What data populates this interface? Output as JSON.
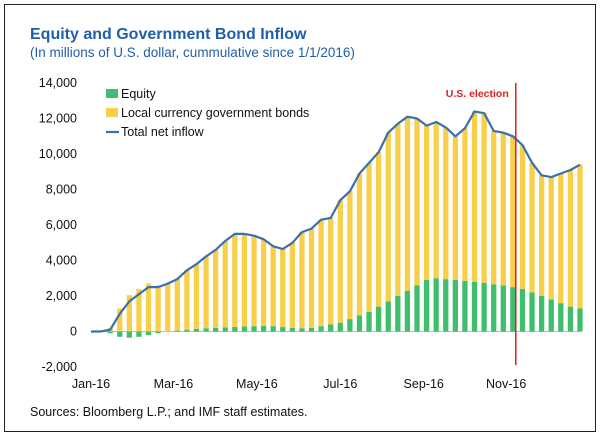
{
  "title": "Equity and Government Bond Inflow",
  "subtitle": "(In millions of U.S. dollar, cummulative since 1/1/2016)",
  "source": "Sources: Bloomberg L.P.; and IMF staff estimates.",
  "colors": {
    "equity": "#3fbf6b",
    "bonds": "#f7cf49",
    "total": "#3a6fb0",
    "election": "#e02020",
    "title": "#1f5fa8"
  },
  "chart_data": {
    "type": "bar",
    "stacked": true,
    "title": "Equity and Government Bond Inflow",
    "ylabel": "",
    "ylim": [
      -2000,
      14000
    ],
    "yticks": [
      -2000,
      0,
      2000,
      4000,
      6000,
      8000,
      10000,
      12000,
      14000
    ],
    "ytick_labels": [
      "-2,000",
      "0",
      "2,000",
      "4,000",
      "6,000",
      "8,000",
      "10,000",
      "12,000",
      "14,000"
    ],
    "x_range": [
      0,
      51
    ],
    "xticks": [
      0,
      8.6,
      17.3,
      26,
      34.7,
      43.3
    ],
    "xtick_labels": [
      "Jan-16",
      "Mar-16",
      "May-16",
      "Jul-16",
      "Sep-16",
      "Nov-16"
    ],
    "legend": {
      "position": "top-left",
      "entries": [
        "Equity",
        "Local currency government bonds",
        "Total net inflow"
      ]
    },
    "annotations": [
      {
        "text": "U.S. election",
        "x": 44.3
      }
    ],
    "series": [
      {
        "name": "Equity",
        "kind": "bar",
        "values": [
          0,
          0,
          -100,
          -300,
          -350,
          -300,
          -200,
          -100,
          0,
          50,
          100,
          150,
          180,
          200,
          230,
          260,
          280,
          300,
          320,
          300,
          250,
          200,
          180,
          200,
          300,
          400,
          500,
          700,
          900,
          1100,
          1400,
          1700,
          2000,
          2300,
          2600,
          2900,
          3000,
          2950,
          2900,
          2850,
          2800,
          2750,
          2650,
          2600,
          2500,
          2400,
          2200,
          2000,
          1800,
          1600,
          1400,
          1300
        ]
      },
      {
        "name": "Local currency government bonds",
        "kind": "bar",
        "values": [
          0,
          0,
          200,
          1300,
          2050,
          2400,
          2700,
          2600,
          2700,
          2900,
          3350,
          3650,
          4050,
          4400,
          4870,
          5240,
          5220,
          5100,
          4880,
          4500,
          4400,
          4800,
          5420,
          5600,
          6000,
          6000,
          6900,
          7200,
          8000,
          8400,
          8700,
          9500,
          9700,
          9800,
          9400,
          8700,
          8800,
          8550,
          8100,
          8600,
          9600,
          9550,
          8650,
          8600,
          8500,
          8100,
          7300,
          6800,
          6900,
          7300,
          7700,
          8100
        ]
      },
      {
        "name": "Total net inflow",
        "kind": "line",
        "values": [
          0,
          0,
          100,
          1000,
          1700,
          2100,
          2500,
          2500,
          2700,
          2950,
          3450,
          3800,
          4230,
          4600,
          5100,
          5500,
          5500,
          5400,
          5200,
          4800,
          4650,
          5000,
          5600,
          5800,
          6300,
          6400,
          7400,
          7900,
          8900,
          9500,
          10100,
          11200,
          11700,
          12100,
          12000,
          11600,
          11800,
          11500,
          11000,
          11450,
          12400,
          12300,
          11300,
          11200,
          11000,
          10500,
          9500,
          8800,
          8700,
          8900,
          9100,
          9400
        ]
      }
    ]
  }
}
